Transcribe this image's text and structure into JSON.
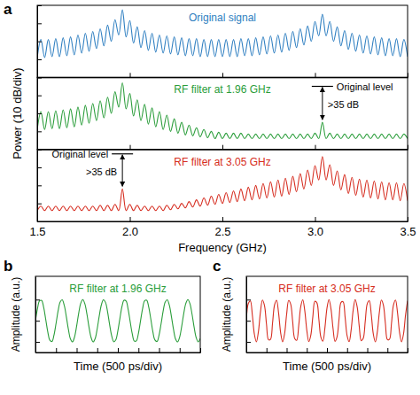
{
  "chart_data": [
    {
      "type": "line",
      "panel_label": "a",
      "x_label": "Frequency (GHz)",
      "y_label": "Power (10 dB/div)",
      "xlim": [
        1.5,
        3.5
      ],
      "xticks": [
        1.5,
        {
          "value": 2,
          "label": "2.0"
        },
        2.5,
        {
          "value": 3,
          "label": "3.0"
        },
        3.5
      ],
      "ylim": [
        0,
        80
      ],
      "yticks": [
        0,
        20,
        40,
        60,
        80
      ],
      "tick_labels": "x",
      "x": [
        1.5,
        1.52,
        1.54,
        1.56,
        1.58,
        1.6,
        1.62,
        1.64,
        1.66,
        1.68,
        1.7,
        1.72,
        1.74,
        1.76,
        1.78,
        1.8,
        1.82,
        1.84,
        1.86,
        1.88,
        1.9,
        1.92,
        1.94,
        1.96,
        1.98,
        2,
        2.02,
        2.04,
        2.06,
        2.08,
        2.1,
        2.12,
        2.14,
        2.16,
        2.18,
        2.2,
        2.22,
        2.24,
        2.26,
        2.28,
        2.3,
        2.32,
        2.34,
        2.36,
        2.38,
        2.4,
        2.42,
        2.44,
        2.46,
        2.48,
        2.5,
        2.52,
        2.54,
        2.56,
        2.58,
        2.6,
        2.62,
        2.64,
        2.66,
        2.68,
        2.7,
        2.72,
        2.74,
        2.76,
        2.78,
        2.8,
        2.82,
        2.84,
        2.86,
        2.88,
        2.9,
        2.92,
        2.94,
        2.96,
        2.98,
        3,
        3.02,
        3.04,
        3.06,
        3.08,
        3.1,
        3.12,
        3.14,
        3.16,
        3.18,
        3.2,
        3.22,
        3.24,
        3.26,
        3.28,
        3.3,
        3.32,
        3.34,
        3.36,
        3.38,
        3.4,
        3.42,
        3.44,
        3.46,
        3.48,
        3.5
      ],
      "series": [
        {
          "name": "Original signal",
          "color": "#2f7fc1",
          "values": [
            22,
            42,
            22,
            42,
            23,
            43,
            23,
            44,
            24,
            45,
            25,
            47,
            27,
            49,
            29,
            51,
            32,
            54,
            35,
            58,
            40,
            64,
            47,
            75,
            45,
            63,
            38,
            56,
            33,
            52,
            30,
            49,
            28,
            47,
            27,
            46,
            26,
            45,
            25,
            44,
            24,
            43,
            24,
            43,
            23,
            42,
            23,
            42,
            23,
            42,
            23,
            42,
            23,
            42,
            23,
            43,
            24,
            43,
            24,
            44,
            25,
            45,
            26,
            46,
            27,
            47,
            28,
            49,
            30,
            51,
            33,
            54,
            36,
            57,
            40,
            62,
            46,
            70,
            46,
            62,
            40,
            56,
            35,
            52,
            31,
            49,
            29,
            47,
            27,
            46,
            26,
            45,
            25,
            44,
            24,
            43,
            24,
            43,
            23,
            42,
            23
          ]
        },
        {
          "name": "RF filter at 1.96 GHz",
          "color": "#2a9d3a",
          "values": [
            22,
            42,
            22,
            42,
            23,
            43,
            23,
            44,
            24,
            45,
            25,
            47,
            27,
            49,
            29,
            51,
            32,
            54,
            35,
            58,
            40,
            64,
            47,
            74,
            45,
            62,
            37,
            55,
            32,
            50,
            28,
            46,
            25,
            42,
            22,
            38,
            20,
            34,
            18,
            30,
            16,
            27,
            15,
            24,
            14,
            22,
            13,
            20,
            12,
            19,
            12,
            18,
            12,
            18,
            12,
            18,
            12,
            17,
            12,
            17,
            12,
            17,
            12,
            17,
            12,
            17,
            12,
            17,
            12,
            17,
            12,
            17,
            12,
            17,
            12,
            18,
            12,
            30,
            12,
            18,
            12,
            17,
            12,
            17,
            12,
            17,
            12,
            17,
            12,
            17,
            12,
            17,
            12,
            17,
            12,
            17,
            12,
            17,
            12,
            17,
            12
          ],
          "annotation": {
            "text": "Original level",
            "gap_label": ">35 dB",
            "x": 3.04,
            "level": 70
          }
        },
        {
          "name": "RF filter at 3.05 GHz",
          "color": "#d62d20",
          "values": [
            12,
            17,
            12,
            17,
            12,
            17,
            12,
            17,
            12,
            17,
            12,
            17,
            12,
            17,
            12,
            17,
            12,
            18,
            12,
            18,
            12,
            19,
            12,
            36,
            12,
            19,
            12,
            18,
            12,
            17,
            12,
            17,
            12,
            17,
            12,
            18,
            13,
            19,
            14,
            20,
            15,
            22,
            16,
            24,
            17,
            26,
            18,
            28,
            19,
            30,
            20,
            32,
            21,
            34,
            22,
            36,
            23,
            38,
            24,
            40,
            25,
            42,
            26,
            44,
            27,
            46,
            28,
            48,
            30,
            50,
            33,
            53,
            36,
            57,
            40,
            62,
            46,
            72,
            46,
            63,
            40,
            56,
            35,
            52,
            31,
            49,
            29,
            47,
            27,
            46,
            26,
            45,
            25,
            44,
            24,
            43,
            24,
            43,
            23,
            42,
            23
          ],
          "annotation": {
            "text": "Original level",
            "gap_label": ">35 dB",
            "x": 1.96,
            "level": 75
          }
        }
      ]
    },
    {
      "type": "line",
      "panel_label": "b",
      "x_label": "Time (500 ps/div)",
      "y_label": "Amplitude (a.u.)",
      "xlim": [
        0,
        4000
      ],
      "xticks": [
        0,
        500,
        1000,
        1500,
        2000,
        2500,
        3000,
        3500,
        4000
      ],
      "ylim": [
        -1.5,
        2.1
      ],
      "yticks": [
        -1,
        0,
        1
      ],
      "tick_labels": false,
      "x": [
        0,
        50,
        100,
        150,
        200,
        250,
        300,
        350,
        400,
        450,
        500,
        550,
        600,
        650,
        700,
        750,
        800,
        850,
        900,
        950,
        1000,
        1050,
        1100,
        1150,
        1200,
        1250,
        1300,
        1350,
        1400,
        1450,
        1500,
        1550,
        1600,
        1650,
        1700,
        1750,
        1800,
        1850,
        1900,
        1950,
        2000,
        2050,
        2100,
        2150,
        2200,
        2250,
        2300,
        2350,
        2400,
        2450,
        2500,
        2550,
        2600,
        2650,
        2700,
        2750,
        2800,
        2850,
        2900,
        2950,
        3000,
        3050,
        3100,
        3150,
        3200,
        3250,
        3300,
        3350,
        3400,
        3450,
        3500,
        3550,
        3600,
        3650,
        3700,
        3750,
        3800,
        3850,
        3900,
        3950,
        4000
      ],
      "series": [
        {
          "name": "RF filter at 1.96 GHz",
          "color": "#2a9d3a",
          "values": [
            0,
            0.58,
            0.94,
            0.96,
            0.63,
            0.06,
            -0.53,
            -0.92,
            -0.98,
            -0.68,
            -0.13,
            0.47,
            0.89,
            0.99,
            0.72,
            0.19,
            -0.41,
            -0.86,
            -1,
            -0.76,
            -0.25,
            0.36,
            0.83,
            1,
            0.8,
            0.31,
            -0.3,
            -0.79,
            -1,
            -0.84,
            -0.37,
            0.24,
            0.75,
            0.99,
            0.87,
            0.43,
            -0.18,
            -0.71,
            -0.99,
            -0.9,
            -0.48,
            0.11,
            0.67,
            0.97,
            0.93,
            0.54,
            -0.05,
            -0.62,
            -0.96,
            -0.95,
            -0.59,
            -0.01,
            0.57,
            0.94,
            0.97,
            0.64,
            0.08,
            -0.52,
            -0.91,
            -0.98,
            -0.68,
            -0.14,
            0.46,
            0.89,
            0.99,
            0.73,
            0.2,
            -0.4,
            -0.86,
            -1,
            -0.77,
            -0.26,
            0.35,
            0.82,
            1,
            0.81,
            0.32,
            -0.29,
            -0.79,
            -1,
            -0.84
          ]
        }
      ]
    },
    {
      "type": "line",
      "panel_label": "c",
      "x_label": "Time (500 ps/div)",
      "y_label": "Amplitude (a.u.)",
      "xlim": [
        0,
        4000
      ],
      "xticks": [
        0,
        500,
        1000,
        1500,
        2000,
        2500,
        3000,
        3500,
        4000
      ],
      "ylim": [
        -1.5,
        2.1
      ],
      "yticks": [
        -1,
        0,
        1
      ],
      "tick_labels": false,
      "x": [
        0,
        50,
        100,
        150,
        200,
        250,
        300,
        350,
        400,
        450,
        500,
        550,
        600,
        650,
        700,
        750,
        800,
        850,
        900,
        950,
        1000,
        1050,
        1100,
        1150,
        1200,
        1250,
        1300,
        1350,
        1400,
        1450,
        1500,
        1550,
        1600,
        1650,
        1700,
        1750,
        1800,
        1850,
        1900,
        1950,
        2000,
        2050,
        2100,
        2150,
        2200,
        2250,
        2300,
        2350,
        2400,
        2450,
        2500,
        2550,
        2600,
        2650,
        2700,
        2750,
        2800,
        2850,
        2900,
        2950,
        3000,
        3050,
        3100,
        3150,
        3200,
        3250,
        3300,
        3350,
        3400,
        3450,
        3500,
        3550,
        3600,
        3650,
        3700,
        3750,
        3800,
        3850,
        3900,
        3950,
        4000
      ],
      "series": [
        {
          "name": "RF filter at 3.05 GHz",
          "color": "#d62d20",
          "values": [
            0,
            0.82,
            0.94,
            0.26,
            -0.64,
            -1,
            -0.51,
            0.41,
            0.98,
            0.72,
            -0.16,
            -0.9,
            -0.88,
            -0.11,
            0.75,
            0.97,
            0.37,
            -0.55,
            -1,
            -0.6,
            0.31,
            0.96,
            0.79,
            -0.05,
            -0.84,
            -0.92,
            -0.22,
            0.67,
            0.99,
            0.47,
            -0.45,
            -0.99,
            -0.68,
            0.2,
            0.92,
            0.85,
            0.06,
            -0.78,
            -0.96,
            -0.32,
            0.59,
            1,
            0.56,
            -0.35,
            -0.97,
            -0.76,
            0.09,
            0.87,
            0.9,
            0.17,
            -0.71,
            -0.99,
            -0.43,
            0.5,
            1,
            0.65,
            -0.25,
            -0.94,
            -0.83,
            -0.02,
            0.81,
            0.95,
            0.28,
            -0.63,
            -1,
            -0.52,
            0.4,
            0.98,
            0.73,
            -0.14,
            -0.89,
            -0.88,
            -0.13,
            0.74,
            0.98,
            0.38,
            -0.54,
            -1,
            -0.61,
            0.29,
            0.95
          ]
        }
      ]
    }
  ]
}
